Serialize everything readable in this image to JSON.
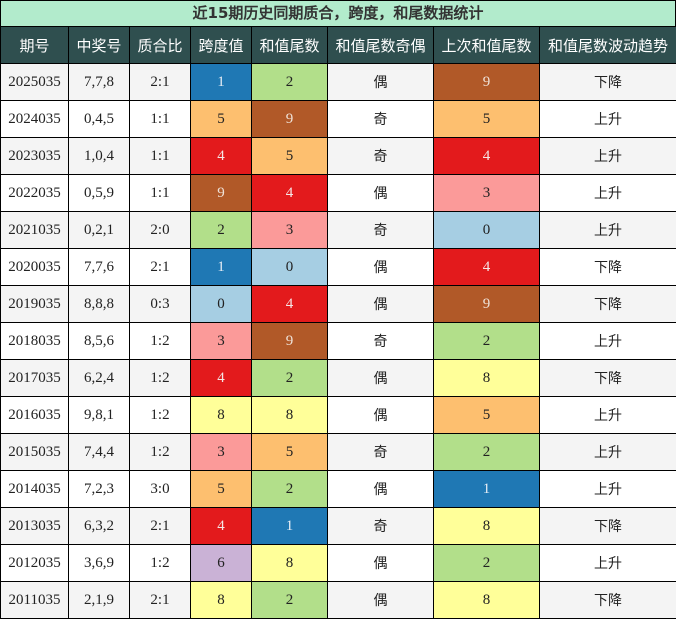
{
  "title": "近15期历史同期质合，跨度，和尾数据统计",
  "headers": [
    "期号",
    "中奖号",
    "质合比",
    "跨度值",
    "和值尾数",
    "和值尾数奇偶",
    "上次和值尾数",
    "和值尾数波动趋势"
  ],
  "digit_colors": {
    "0": {
      "bg": "#a6cee3",
      "fg": "#222222"
    },
    "1": {
      "bg": "#1f78b4",
      "fg": "#e8eef5"
    },
    "2": {
      "bg": "#b2df8a",
      "fg": "#222222"
    },
    "3": {
      "bg": "#fb9a99",
      "fg": "#222222"
    },
    "4": {
      "bg": "#e31a1c",
      "fg": "#f5e6e6"
    },
    "5": {
      "bg": "#fdbf6f",
      "fg": "#222222"
    },
    "6": {
      "bg": "#cab2d6",
      "fg": "#222222"
    },
    "8": {
      "bg": "#ffff99",
      "fg": "#222222"
    },
    "9": {
      "bg": "#b15928",
      "fg": "#efe2d8"
    }
  },
  "rows": [
    {
      "issue": "2025035",
      "numbers": "7,7,8",
      "ratio": "2:1",
      "span": "1",
      "tail": "2",
      "parity": "偶",
      "prev_tail": "9",
      "trend": "下降"
    },
    {
      "issue": "2024035",
      "numbers": "0,4,5",
      "ratio": "1:1",
      "span": "5",
      "tail": "9",
      "parity": "奇",
      "prev_tail": "5",
      "trend": "上升"
    },
    {
      "issue": "2023035",
      "numbers": "1,0,4",
      "ratio": "1:1",
      "span": "4",
      "tail": "5",
      "parity": "奇",
      "prev_tail": "4",
      "trend": "上升"
    },
    {
      "issue": "2022035",
      "numbers": "0,5,9",
      "ratio": "1:1",
      "span": "9",
      "tail": "4",
      "parity": "偶",
      "prev_tail": "3",
      "trend": "上升"
    },
    {
      "issue": "2021035",
      "numbers": "0,2,1",
      "ratio": "2:0",
      "span": "2",
      "tail": "3",
      "parity": "奇",
      "prev_tail": "0",
      "trend": "上升"
    },
    {
      "issue": "2020035",
      "numbers": "7,7,6",
      "ratio": "2:1",
      "span": "1",
      "tail": "0",
      "parity": "偶",
      "prev_tail": "4",
      "trend": "下降"
    },
    {
      "issue": "2019035",
      "numbers": "8,8,8",
      "ratio": "0:3",
      "span": "0",
      "tail": "4",
      "parity": "偶",
      "prev_tail": "9",
      "trend": "下降"
    },
    {
      "issue": "2018035",
      "numbers": "8,5,6",
      "ratio": "1:2",
      "span": "3",
      "tail": "9",
      "parity": "奇",
      "prev_tail": "2",
      "trend": "上升"
    },
    {
      "issue": "2017035",
      "numbers": "6,2,4",
      "ratio": "1:2",
      "span": "4",
      "tail": "2",
      "parity": "偶",
      "prev_tail": "8",
      "trend": "下降"
    },
    {
      "issue": "2016035",
      "numbers": "9,8,1",
      "ratio": "1:2",
      "span": "8",
      "tail": "8",
      "parity": "偶",
      "prev_tail": "5",
      "trend": "上升"
    },
    {
      "issue": "2015035",
      "numbers": "7,4,4",
      "ratio": "1:2",
      "span": "3",
      "tail": "5",
      "parity": "奇",
      "prev_tail": "2",
      "trend": "上升"
    },
    {
      "issue": "2014035",
      "numbers": "7,2,3",
      "ratio": "3:0",
      "span": "5",
      "tail": "2",
      "parity": "偶",
      "prev_tail": "1",
      "trend": "上升"
    },
    {
      "issue": "2013035",
      "numbers": "6,3,2",
      "ratio": "2:1",
      "span": "4",
      "tail": "1",
      "parity": "奇",
      "prev_tail": "8",
      "trend": "下降"
    },
    {
      "issue": "2012035",
      "numbers": "3,6,9",
      "ratio": "1:2",
      "span": "6",
      "tail": "8",
      "parity": "偶",
      "prev_tail": "2",
      "trend": "上升"
    },
    {
      "issue": "2011035",
      "numbers": "2,1,9",
      "ratio": "2:1",
      "span": "8",
      "tail": "2",
      "parity": "偶",
      "prev_tail": "8",
      "trend": "下降"
    }
  ]
}
